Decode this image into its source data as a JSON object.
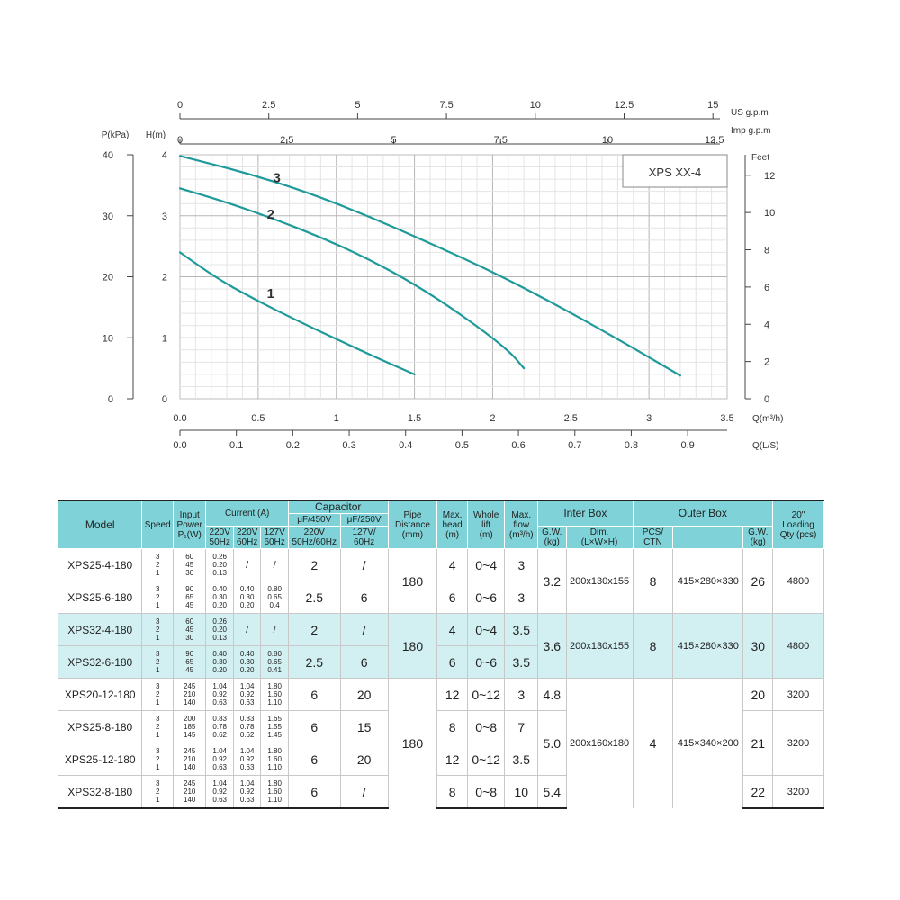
{
  "chart_data": {
    "type": "line",
    "title": "",
    "legend_box": "XPS XX-4",
    "axes": {
      "left_outer": {
        "label": "P(kPa)",
        "ticks": [
          "40",
          "30",
          "20",
          "10",
          "0"
        ],
        "range": [
          0,
          40
        ]
      },
      "left_inner": {
        "label": "H(m)",
        "ticks": [
          "4",
          "3",
          "2",
          "1",
          "0"
        ],
        "range": [
          0,
          4
        ]
      },
      "right": {
        "label": "Feet",
        "ticks": [
          "12",
          "10",
          "8",
          "6",
          "4",
          "2",
          "0"
        ],
        "range": [
          0,
          13.1
        ]
      },
      "top_us": {
        "label": "US g.p.m",
        "ticks": [
          "0",
          "2.5",
          "5",
          "7.5",
          "10",
          "12.5",
          "15"
        ],
        "range": [
          0,
          15.4
        ]
      },
      "top_imp": {
        "label": "Imp g.p.m",
        "ticks": [
          "0",
          "2.5",
          "5",
          "7.5",
          "10",
          "12.5"
        ],
        "range": [
          0,
          12.8
        ]
      },
      "bottom_m3h": {
        "label": "Q(m³/h)",
        "ticks": [
          "0.0",
          "0.5",
          "1",
          "1.5",
          "2",
          "2.5",
          "3",
          "3.5"
        ],
        "range": [
          0,
          3.5
        ]
      },
      "bottom_ls": {
        "label": "Q(L/S)",
        "ticks": [
          "0.0",
          "0.1",
          "0.2",
          "0.3",
          "0.4",
          "0.5",
          "0.6",
          "0.7",
          "0.8",
          "0.9"
        ],
        "range": [
          0,
          0.97
        ]
      }
    },
    "grid": true,
    "x_unit": "m³/h",
    "y_unit": "m",
    "series": [
      {
        "name": "1",
        "x": [
          0,
          0.25,
          0.5,
          0.75,
          1.0,
          1.25,
          1.5
        ],
        "y": [
          2.4,
          1.95,
          1.6,
          1.28,
          0.98,
          0.68,
          0.4
        ]
      },
      {
        "name": "2",
        "x": [
          0,
          0.3,
          0.6,
          0.9,
          1.2,
          1.5,
          1.8,
          2.1,
          2.2
        ],
        "y": [
          3.45,
          3.22,
          2.95,
          2.65,
          2.3,
          1.88,
          1.38,
          0.8,
          0.5
        ]
      },
      {
        "name": "3",
        "x": [
          0,
          0.4,
          0.8,
          1.2,
          1.6,
          2.0,
          2.4,
          2.8,
          3.2
        ],
        "y": [
          3.98,
          3.72,
          3.4,
          3.0,
          2.55,
          2.08,
          1.55,
          0.98,
          0.38
        ]
      }
    ]
  },
  "table": {
    "headers": {
      "model": "Model",
      "speed": "Speed",
      "input_power": [
        "Input",
        "Power",
        "P₁(W)"
      ],
      "current": "Current  (A)",
      "current_sub": [
        [
          "220V",
          "50Hz"
        ],
        [
          "220V",
          "60Hz"
        ],
        [
          "127V",
          "60Hz"
        ]
      ],
      "capacitor": "Capacitor",
      "cap_sub1": [
        "μF/450V",
        "μF/250V"
      ],
      "cap_sub2": [
        [
          "220V",
          "50Hz/60Hz"
        ],
        [
          "127V/",
          "60Hz"
        ]
      ],
      "pipe": [
        "Pipe",
        "Distance",
        "(mm)"
      ],
      "max_head": [
        "Max.",
        "head",
        "(m)"
      ],
      "whole_lift": [
        "Whole",
        "lift",
        "(m)"
      ],
      "max_flow": [
        "Max.",
        "flow",
        "(m³/h)"
      ],
      "inter_box": "Inter Box",
      "inter_sub": [
        [
          "G.W.",
          "(kg)"
        ],
        [
          "Dim.",
          "(L×W×H)"
        ]
      ],
      "outer_box": "Outer Box",
      "outer_sub": [
        [
          "PCS/",
          "CTN"
        ],
        [
          "",
          ""
        ],
        [
          "G.W.",
          "(kg)"
        ]
      ],
      "loading": [
        "20\"",
        "Loading",
        "Qty (pcs)"
      ]
    },
    "rows": [
      {
        "model": "XPS25-4-180",
        "speed": [
          "3",
          "2",
          "1"
        ],
        "power": [
          "60",
          "45",
          "30"
        ],
        "c1": [
          "0.26",
          "0.20",
          "0.13"
        ],
        "c2": [
          "/"
        ],
        "c3": [
          "/"
        ],
        "cap1": "2",
        "cap2": "/",
        "head": "4",
        "lift": "0~4",
        "flow": "3"
      },
      {
        "model": "XPS25-6-180",
        "speed": [
          "3",
          "2",
          "1"
        ],
        "power": [
          "90",
          "65",
          "45"
        ],
        "c1": [
          "0.40",
          "0.30",
          "0.20"
        ],
        "c2": [
          "0.40",
          "0.30",
          "0.20"
        ],
        "c3": [
          "0.80",
          "0.65",
          "0.4"
        ],
        "cap1": "2.5",
        "cap2": "6",
        "head": "6",
        "lift": "0~6",
        "flow": "3"
      },
      {
        "model": "XPS32-4-180",
        "speed": [
          "3",
          "2",
          "1"
        ],
        "power": [
          "60",
          "45",
          "30"
        ],
        "c1": [
          "0.26",
          "0.20",
          "0.13"
        ],
        "c2": [
          "/"
        ],
        "c3": [
          "/"
        ],
        "cap1": "2",
        "cap2": "/",
        "head": "4",
        "lift": "0~4",
        "flow": "3.5"
      },
      {
        "model": "XPS32-6-180",
        "speed": [
          "3",
          "2",
          "1"
        ],
        "power": [
          "90",
          "65",
          "45"
        ],
        "c1": [
          "0.40",
          "0.30",
          "0.20"
        ],
        "c2": [
          "0.40",
          "0.30",
          "0.20"
        ],
        "c3": [
          "0.80",
          "0.65",
          "0.41"
        ],
        "cap1": "2.5",
        "cap2": "6",
        "head": "6",
        "lift": "0~6",
        "flow": "3.5"
      },
      {
        "model": "XPS20-12-180",
        "speed": [
          "3",
          "2",
          "1"
        ],
        "power": [
          "245",
          "210",
          "140"
        ],
        "c1": [
          "1.04",
          "0.92",
          "0.63"
        ],
        "c2": [
          "1.04",
          "0.92",
          "0.63"
        ],
        "c3": [
          "1.80",
          "1.60",
          "1.10"
        ],
        "cap1": "6",
        "cap2": "20",
        "head": "12",
        "lift": "0~12",
        "flow": "3"
      },
      {
        "model": "XPS25-8-180",
        "speed": [
          "3",
          "2",
          "1"
        ],
        "power": [
          "200",
          "185",
          "145"
        ],
        "c1": [
          "0.83",
          "0.78",
          "0.62"
        ],
        "c2": [
          "0.83",
          "0.78",
          "0.62"
        ],
        "c3": [
          "1.65",
          "1.55",
          "1.45"
        ],
        "cap1": "6",
        "cap2": "15",
        "head": "8",
        "lift": "0~8",
        "flow": "7"
      },
      {
        "model": "XPS25-12-180",
        "speed": [
          "3",
          "2",
          "1"
        ],
        "power": [
          "245",
          "210",
          "140"
        ],
        "c1": [
          "1.04",
          "0.92",
          "0.63"
        ],
        "c2": [
          "1.04",
          "0.92",
          "0.63"
        ],
        "c3": [
          "1.80",
          "1.60",
          "1.10"
        ],
        "cap1": "6",
        "cap2": "20",
        "head": "12",
        "lift": "0~12",
        "flow": "3.5"
      },
      {
        "model": "XPS32-8-180",
        "speed": [
          "3",
          "2",
          "1"
        ],
        "power": [
          "245",
          "210",
          "140"
        ],
        "c1": [
          "1.04",
          "0.92",
          "0.63"
        ],
        "c2": [
          "1.04",
          "0.92",
          "0.63"
        ],
        "c3": [
          "1.80",
          "1.60",
          "1.10"
        ],
        "cap1": "6",
        "cap2": "/",
        "head": "8",
        "lift": "0~8",
        "flow": "10"
      }
    ],
    "groups": [
      {
        "pipe": "180",
        "inter_gw": "3.2",
        "inter_dim": "200x130x155",
        "pcs": "8",
        "outer_dim": "415×280×330",
        "outer_gw": "26",
        "qty": "4800"
      },
      {
        "pipe": "180",
        "inter_gw": "3.6",
        "inter_dim": "200x130x155",
        "pcs": "8",
        "outer_dim": "415×280×330",
        "outer_gw": "30",
        "qty": "4800"
      },
      {
        "pipe": "180",
        "inter_gw": [
          "4.8",
          "5.0",
          "5.4"
        ],
        "inter_dim": "200x160x180",
        "pcs": "4",
        "outer_dim": "415×340×200",
        "outer_gw": [
          "20",
          "21",
          "22"
        ],
        "qty": [
          "3200",
          "3200",
          "3200"
        ]
      }
    ]
  }
}
